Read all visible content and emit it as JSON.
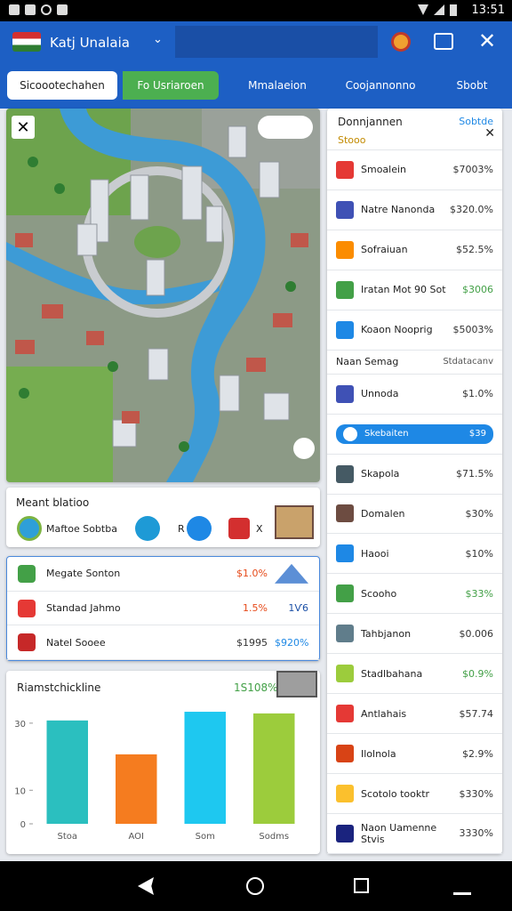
{
  "status_bar": {
    "time": "13:51"
  },
  "app_bar": {
    "title": "Katj Unalaia"
  },
  "tabs": [
    "Sicoootechahen",
    "Fo Usriaroen",
    "Mmalaeion",
    "Coojannonno",
    "Sbobt"
  ],
  "location_card": {
    "title": "Meant blatioo",
    "subtitle": "Maftoe Sobtba",
    "badge": "R",
    "close": "X"
  },
  "list_card": {
    "rows": [
      {
        "name": "Megate Sonton",
        "value": "$1.0%"
      },
      {
        "name": "Standad Jahmo",
        "value": "1.5%",
        "note": "1Ѵ6"
      },
      {
        "name": "Natel Sooee",
        "value": "$1995",
        "note": "$920%"
      }
    ]
  },
  "chart_card": {
    "title": "Riamstchickline",
    "total": "1S108%",
    "chart_data": {
      "type": "bar",
      "categories": [
        "Stoa",
        "AOI",
        "Som",
        "Sodms"
      ],
      "values": [
        30.8,
        20.7,
        33.4,
        32.9
      ],
      "colors": [
        "#2bbfbf",
        "#f57c1f",
        "#1ec8f0",
        "#9ccc3c"
      ],
      "ylim": [
        0,
        35
      ],
      "yticks": [
        0,
        10,
        30
      ]
    }
  },
  "side_panel": {
    "title": "Donnjannen",
    "action": "Sobtde",
    "subtitle": "Stooo",
    "groups": [
      {
        "items": [
          {
            "name": "Smoalein",
            "value": "$7003%",
            "color": "#e53935"
          },
          {
            "name": "Natre Nanonda",
            "value": "$320.0%",
            "color": "#3f51b5"
          },
          {
            "name": "Sofraiuan",
            "value": "$52.5%",
            "color": "#fb8c00"
          },
          {
            "name": "Iratan Mot 90 Sot",
            "value": "$3006",
            "color": "#43a047"
          },
          {
            "name": "Koaon Nooprig",
            "value": "$5003%",
            "color": "#1e88e5"
          }
        ]
      },
      {
        "title": "Naan Semag",
        "action": "Stdatacanv",
        "items": [
          {
            "name": "Unnoda",
            "value": "$1.0%",
            "color": "#3f51b5"
          },
          {
            "name": "Skebaiten",
            "value": "$39",
            "color": "#26a69a"
          },
          {
            "name": "Skapola",
            "value": "$71.5%",
            "color": "#455a64"
          },
          {
            "name": "Domalen",
            "value": "$30%",
            "color": "#6d4c41"
          },
          {
            "name": "Haooi",
            "value": "$10%",
            "color": "#1e88e5"
          },
          {
            "name": "Scooho",
            "value": "$33%",
            "color": "#43a047"
          },
          {
            "name": "Tahbjanon",
            "value": "$0.006",
            "color": "#607d8b"
          },
          {
            "name": "Stadlbahana",
            "value": "$0.9%",
            "color": "#9ccc3c"
          },
          {
            "name": "Antlahais",
            "value": "$57.74",
            "color": "#e53935"
          },
          {
            "name": "Ilolnola",
            "value": "$2.9%",
            "color": "#d84315"
          },
          {
            "name": "Scotolo tooktr",
            "value": "$330%",
            "color": "#fbc02d"
          },
          {
            "name": "Naon Uamenne Stvis",
            "value": "3330%",
            "color": "#1a237e"
          }
        ]
      }
    ]
  }
}
